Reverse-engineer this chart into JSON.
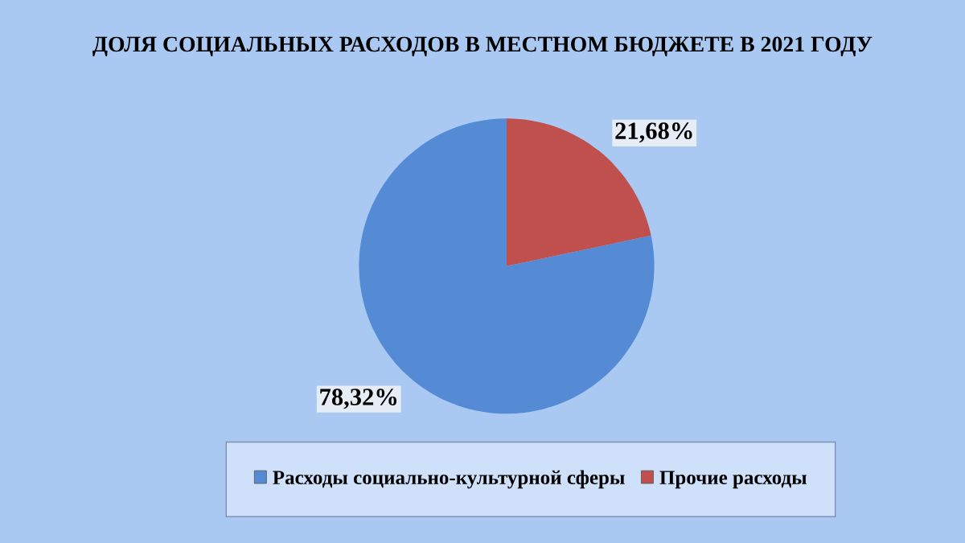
{
  "chart_data": {
    "type": "pie",
    "title": "ДОЛЯ СОЦИАЛЬНЫХ РАСХОДОВ В МЕСТНОМ БЮДЖЕТЕ В 2021 ГОДУ",
    "categories": [
      "Расходы социально-культурной сферы",
      "Прочие расходы"
    ],
    "values": [
      78.32,
      21.68
    ],
    "colors": [
      "#558bd4",
      "#c0504d"
    ],
    "value_labels": [
      "78,32%",
      "21,68%"
    ],
    "legend": "bottom"
  }
}
